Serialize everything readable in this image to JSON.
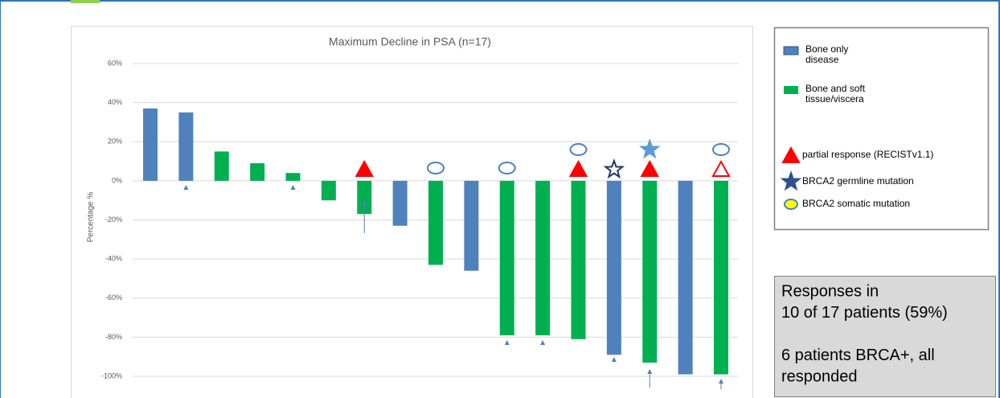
{
  "chart_data": {
    "type": "bar",
    "title": "Maximum Decline in PSA  (n=17)",
    "y_label": "Percentage %",
    "values": [
      37,
      35,
      15,
      9,
      4,
      -10,
      -17,
      -23,
      -43,
      -46,
      -79,
      -79,
      -81,
      -89,
      -93,
      -99,
      -99
    ],
    "colors": [
      "#4f81bd",
      "#4f81bd",
      "#00b050",
      "#00b050",
      "#00b050",
      "#00b050",
      "#00b050",
      "#4f81bd",
      "#00b050",
      "#4f81bd",
      "#00b050",
      "#00b050",
      "#00b050",
      "#4f81bd",
      "#00b050",
      "#4f81bd",
      "#00b050"
    ],
    "ylim": [
      -100,
      60
    ],
    "yticks": [
      {
        "value": -100,
        "label": "-100%"
      },
      {
        "value": -80,
        "label": "-80%"
      },
      {
        "value": -60,
        "label": "-60%"
      },
      {
        "value": -40,
        "label": "-40%"
      },
      {
        "value": -20,
        "label": "-20%"
      },
      {
        "value": 0,
        "label": "0%"
      },
      {
        "value": 20,
        "label": "20%"
      },
      {
        "value": 40,
        "label": "40%"
      },
      {
        "value": 60,
        "label": "60%"
      }
    ],
    "grid": true,
    "legend": [
      {
        "lines": [
          "Bone only",
          "disease"
        ],
        "color": "#4f81bd"
      },
      {
        "lines": [
          "Bone and soft",
          "tissue/viscera"
        ],
        "color": "#00b050"
      },
      {
        "lines": [
          "partial response (RECISTv1.1)"
        ]
      },
      {
        "lines": [
          "BRCA2 germline mutation"
        ]
      },
      {
        "lines": [
          "BRCA2 somatic mutation"
        ]
      }
    ],
    "note": [
      "Responses in",
      "10 of 17 patients (59%)",
      "",
      "6 patients BRCA+, all",
      "responded"
    ]
  }
}
